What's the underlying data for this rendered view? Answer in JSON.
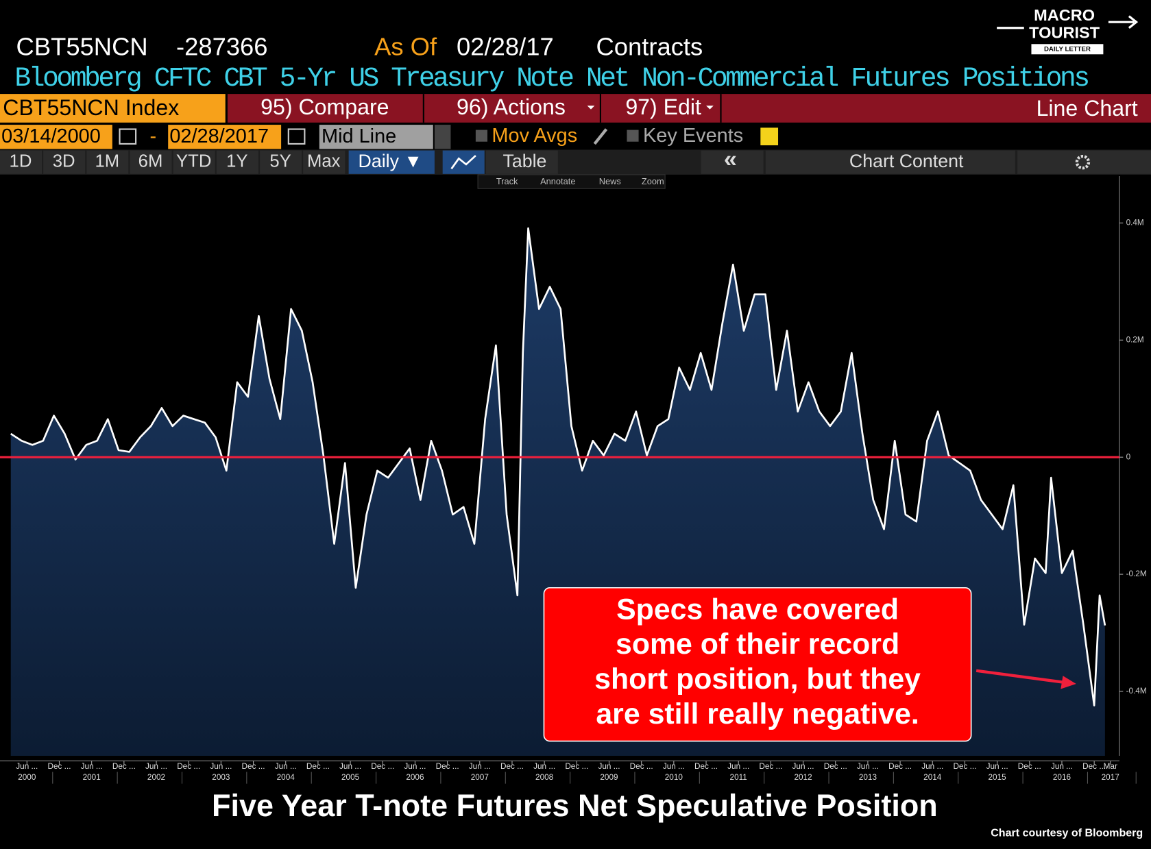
{
  "header": {
    "ticker": "CBT55NCN",
    "last": "-287366",
    "as_of": "As Of",
    "date": "02/28/17",
    "units": "Contracts",
    "subtitle": "Bloomberg CFTC CBT 5-Yr US Treasury Note Net Non-Commercial Futures Positions"
  },
  "logo": {
    "line1": "MACRO",
    "line2": "TOURIST",
    "line3": "DAILY LETTER"
  },
  "toolbar": {
    "security": "CBT55NCN Index",
    "compare": "95) Compare",
    "actions": "96) Actions",
    "edit": "97) Edit",
    "view": "Line Chart",
    "start_date": "03/14/2000",
    "dash": "-",
    "end_date": "02/28/2017",
    "mode": "Mid Line",
    "mov_avgs": "Mov Avgs",
    "key_events": "Key Events",
    "ranges": [
      "1D",
      "3D",
      "1M",
      "6M",
      "YTD",
      "1Y",
      "5Y",
      "Max"
    ],
    "frequency": "Daily ▼",
    "table": "Table",
    "collapse": "«",
    "chart_content": "Chart Content",
    "tools": [
      "Track",
      "Annotate",
      "News",
      "Zoom"
    ]
  },
  "chart_data": {
    "type": "line",
    "title": "Five Year T-note Futures Net Speculative Position",
    "credit": "Chart courtesy of Bloomberg",
    "annotation": [
      "Specs have covered",
      "some of their record",
      "short position, but they",
      "are still really negative."
    ],
    "x": [
      "2000-03",
      "2000-05",
      "2000-07",
      "2000-09",
      "2000-11",
      "2001-01",
      "2001-03",
      "2001-05",
      "2001-07",
      "2001-09",
      "2001-11",
      "2002-01",
      "2002-03",
      "2002-05",
      "2002-07",
      "2002-09",
      "2002-11",
      "2003-01",
      "2003-03",
      "2003-05",
      "2003-07",
      "2003-09",
      "2003-11",
      "2004-01",
      "2004-03",
      "2004-05",
      "2004-07",
      "2004-09",
      "2004-11",
      "2005-01",
      "2005-03",
      "2005-05",
      "2005-07",
      "2005-09",
      "2005-11",
      "2006-01",
      "2006-03",
      "2006-05",
      "2006-07",
      "2006-09",
      "2006-11",
      "2007-01",
      "2007-03",
      "2007-05",
      "2007-07",
      "2007-09",
      "2007-11",
      "2008-01",
      "2008-02",
      "2008-03",
      "2008-05",
      "2008-07",
      "2008-09",
      "2008-11",
      "2009-01",
      "2009-03",
      "2009-05",
      "2009-07",
      "2009-09",
      "2009-11",
      "2010-01",
      "2010-03",
      "2010-05",
      "2010-07",
      "2010-09",
      "2010-11",
      "2011-01",
      "2011-03",
      "2011-05",
      "2011-07",
      "2011-09",
      "2011-11",
      "2012-01",
      "2012-03",
      "2012-05",
      "2012-07",
      "2012-09",
      "2012-11",
      "2013-01",
      "2013-03",
      "2013-05",
      "2013-07",
      "2013-09",
      "2013-11",
      "2014-01",
      "2014-03",
      "2014-05",
      "2014-07",
      "2014-09",
      "2014-11",
      "2015-01",
      "2015-03",
      "2015-05",
      "2015-07",
      "2015-09",
      "2015-11",
      "2016-01",
      "2016-03",
      "2016-04",
      "2016-06",
      "2016-08",
      "2016-10",
      "2016-12",
      "2017-01",
      "2017-02"
    ],
    "series": [
      {
        "name": "CBT55NCN Index",
        "color": "#ffffff",
        "values": [
          40000,
          28000,
          21000,
          28000,
          71000,
          40000,
          -4000,
          21000,
          28000,
          65000,
          12000,
          9000,
          34000,
          53000,
          84000,
          53000,
          71000,
          65000,
          59000,
          34000,
          -23000,
          128000,
          103000,
          241000,
          134000,
          65000,
          253000,
          216000,
          128000,
          3000,
          -148000,
          -10000,
          -223000,
          -98000,
          -23000,
          -35000,
          -10000,
          15000,
          -73000,
          28000,
          -23000,
          -98000,
          -85000,
          -148000,
          65000,
          191000,
          -98000,
          -236000,
          178000,
          391000,
          253000,
          291000,
          253000,
          53000,
          -23000,
          28000,
          3000,
          40000,
          28000,
          78000,
          3000,
          53000,
          65000,
          153000,
          115000,
          178000,
          115000,
          228000,
          329000,
          216000,
          278000,
          278000,
          115000,
          216000,
          78000,
          128000,
          78000,
          53000,
          78000,
          178000,
          40000,
          -73000,
          -123000,
          28000,
          -98000,
          -110000,
          28000,
          78000,
          3000,
          -10000,
          -23000,
          -73000,
          -98000,
          -123000,
          -48000,
          -286000,
          -173000,
          -198000,
          -35000,
          -198000,
          -160000,
          -286000,
          -424000,
          -236000,
          -287366
        ]
      }
    ],
    "zero_line_color": "#f0203c",
    "xlim": [
      "2000-01",
      "2017-04"
    ],
    "ylim": [
      -510000,
      480000
    ],
    "yticks": [
      {
        "value": 400000,
        "label": "0.4M"
      },
      {
        "value": 200000,
        "label": "0.2M"
      },
      0,
      {
        "value": -200000,
        "label": "-0.2M"
      },
      {
        "value": -400000,
        "label": "-0.4M"
      }
    ],
    "xticks": [
      {
        "value": "2000-06",
        "label": "Jun ..."
      },
      {
        "value": "2000-12",
        "label": "Dec ..."
      },
      {
        "value": "2001-06",
        "label": "Jun ..."
      },
      {
        "value": "2001-12",
        "label": "Dec ..."
      },
      {
        "value": "2002-06",
        "label": "Jun ..."
      },
      {
        "value": "2002-12",
        "label": "Dec ..."
      },
      {
        "value": "2003-06",
        "label": "Jun ..."
      },
      {
        "value": "2003-12",
        "label": "Dec ..."
      },
      {
        "value": "2004-06",
        "label": "Jun ..."
      },
      {
        "value": "2004-12",
        "label": "Dec ..."
      },
      {
        "value": "2005-06",
        "label": "Jun ..."
      },
      {
        "value": "2005-12",
        "label": "Dec ..."
      },
      {
        "value": "2006-06",
        "label": "Jun ..."
      },
      {
        "value": "2006-12",
        "label": "Dec ..."
      },
      {
        "value": "2007-06",
        "label": "Jun ..."
      },
      {
        "value": "2007-12",
        "label": "Dec ..."
      },
      {
        "value": "2008-06",
        "label": "Jun ..."
      },
      {
        "value": "2008-12",
        "label": "Dec ..."
      },
      {
        "value": "2009-06",
        "label": "Jun ..."
      },
      {
        "value": "2009-12",
        "label": "Dec ..."
      },
      {
        "value": "2010-06",
        "label": "Jun ..."
      },
      {
        "value": "2010-12",
        "label": "Dec ..."
      },
      {
        "value": "2011-06",
        "label": "Jun ..."
      },
      {
        "value": "2011-12",
        "label": "Dec ..."
      },
      {
        "value": "2012-06",
        "label": "Jun ..."
      },
      {
        "value": "2012-12",
        "label": "Dec ..."
      },
      {
        "value": "2013-06",
        "label": "Jun ..."
      },
      {
        "value": "2013-12",
        "label": "Dec ..."
      },
      {
        "value": "2014-06",
        "label": "Jun ..."
      },
      {
        "value": "2014-12",
        "label": "Dec ..."
      },
      {
        "value": "2015-06",
        "label": "Jun ..."
      },
      {
        "value": "2015-12",
        "label": "Dec ..."
      },
      {
        "value": "2016-06",
        "label": "Jun ..."
      },
      {
        "value": "2016-12",
        "label": "Dec ..."
      },
      {
        "value": "2017-03",
        "label": "Mar"
      }
    ],
    "x_year_ticks": [
      {
        "value": "2000-06",
        "label": "2000"
      },
      {
        "value": "2001-06",
        "label": "2001"
      },
      {
        "value": "2002-06",
        "label": "2002"
      },
      {
        "value": "2003-06",
        "label": "2003"
      },
      {
        "value": "2004-06",
        "label": "2004"
      },
      {
        "value": "2005-06",
        "label": "2005"
      },
      {
        "value": "2006-06",
        "label": "2006"
      },
      {
        "value": "2007-06",
        "label": "2007"
      },
      {
        "value": "2008-06",
        "label": "2008"
      },
      {
        "value": "2009-06",
        "label": "2009"
      },
      {
        "value": "2010-06",
        "label": "2010"
      },
      {
        "value": "2011-06",
        "label": "2011"
      },
      {
        "value": "2012-06",
        "label": "2012"
      },
      {
        "value": "2013-06",
        "label": "2013"
      },
      {
        "value": "2014-06",
        "label": "2014"
      },
      {
        "value": "2015-06",
        "label": "2015"
      },
      {
        "value": "2016-06",
        "label": "2016"
      },
      {
        "value": "2017-03",
        "label": "2017"
      }
    ]
  }
}
